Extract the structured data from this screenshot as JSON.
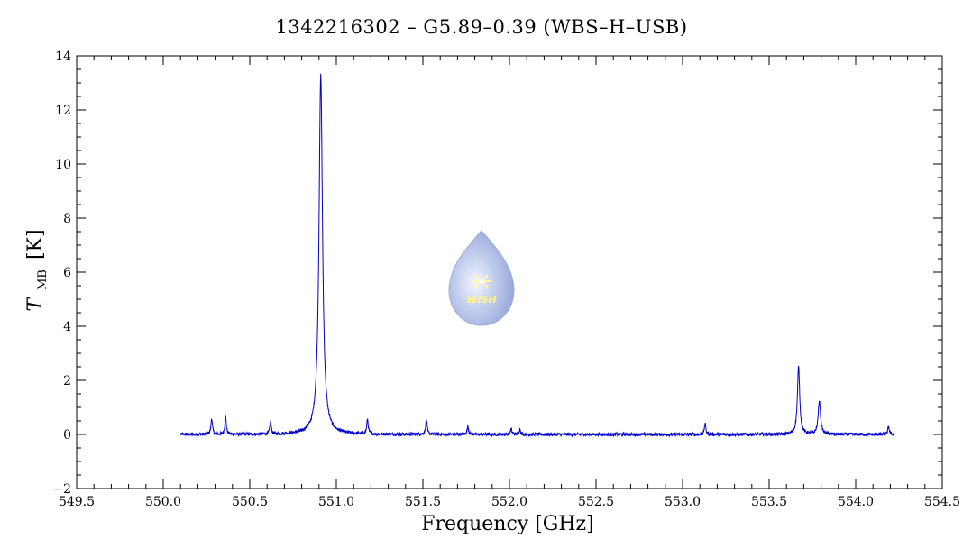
{
  "chart_data": {
    "type": "line",
    "title": "1342216302 – G5.89–0.39 (WBS–H–USB)",
    "xlabel": "Frequency [GHz]",
    "ylabel": {
      "main": "T",
      "sub": "MB",
      "unit": "[K]"
    },
    "xlim": [
      549.5,
      554.5
    ],
    "ylim": [
      -2,
      14
    ],
    "x_ticks": [
      "549.5",
      "550.0",
      "550.5",
      "551.0",
      "551.5",
      "552.0",
      "552.5",
      "553.0",
      "553.5",
      "554.0",
      "554.5"
    ],
    "y_ticks": [
      "−2",
      "0",
      "2",
      "4",
      "6",
      "8",
      "10",
      "12",
      "14"
    ],
    "grid": false,
    "series": [
      {
        "color": "#0000cc",
        "x_range": [
          550.1,
          554.22
        ],
        "baseline": 0.0,
        "peaks": [
          {
            "x": 550.28,
            "y": 0.6
          },
          {
            "x": 550.36,
            "y": 0.65
          },
          {
            "x": 550.62,
            "y": 0.45
          },
          {
            "x": 550.91,
            "y": 13.3
          },
          {
            "x": 551.18,
            "y": 0.55
          },
          {
            "x": 551.52,
            "y": 0.55
          },
          {
            "x": 551.76,
            "y": 0.3
          },
          {
            "x": 552.01,
            "y": 0.2
          },
          {
            "x": 552.06,
            "y": 0.2
          },
          {
            "x": 553.13,
            "y": 0.4
          },
          {
            "x": 553.67,
            "y": 2.5
          },
          {
            "x": 553.79,
            "y": 1.25
          },
          {
            "x": 554.19,
            "y": 0.3
          }
        ]
      }
    ]
  },
  "logo": {
    "text": "WISH",
    "icon": "water-drop-star-icon"
  }
}
